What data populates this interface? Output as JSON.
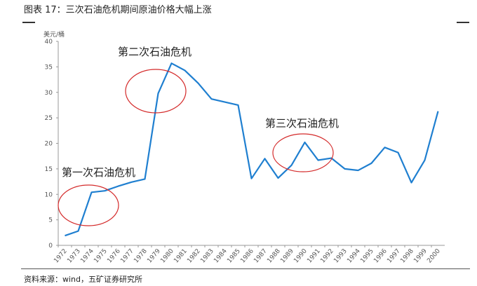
{
  "title": "图表 17：三次石油危机期间原油价格大幅上涨",
  "source": "资料来源：wind，五矿证券研究所",
  "chart_data": {
    "type": "line",
    "ylabel": "美元/桶",
    "ylim": [
      0,
      40
    ],
    "yticks": [
      0,
      5,
      10,
      15,
      20,
      25,
      30,
      35,
      40
    ],
    "categories": [
      "1972",
      "1973",
      "1974",
      "1975",
      "1976",
      "1977",
      "1978",
      "1979",
      "1980",
      "1981",
      "1982",
      "1983",
      "1984",
      "1985",
      "1986",
      "1987",
      "1988",
      "1989",
      "1990",
      "1991",
      "1992",
      "1993",
      "1994",
      "1995",
      "1996",
      "1997",
      "1998",
      "1999",
      "2000"
    ],
    "values": [
      1.9,
      2.8,
      10.4,
      10.7,
      11.6,
      12.4,
      13.0,
      29.8,
      35.7,
      34.3,
      31.8,
      28.7,
      28.1,
      27.5,
      13.1,
      17.0,
      13.2,
      15.7,
      20.2,
      16.7,
      17.1,
      15.0,
      14.7,
      16.1,
      19.2,
      18.2,
      12.3,
      16.7,
      26.3
    ],
    "line_color": "#1f7fd0",
    "annotation_color": "#d42a2a",
    "annotations": [
      {
        "text": "第一次石油危机",
        "year": "1974"
      },
      {
        "text": "第二次石油危机",
        "year": "1979"
      },
      {
        "text": "第三次石油危机",
        "year": "1990"
      }
    ],
    "grid": false
  }
}
